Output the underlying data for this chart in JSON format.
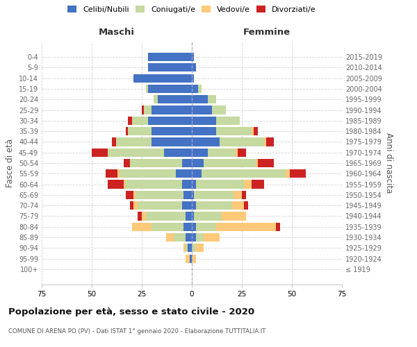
{
  "age_groups": [
    "100+",
    "95-99",
    "90-94",
    "85-89",
    "80-84",
    "75-79",
    "70-74",
    "65-69",
    "60-64",
    "55-59",
    "50-54",
    "45-49",
    "40-44",
    "35-39",
    "30-34",
    "25-29",
    "20-24",
    "15-19",
    "10-14",
    "5-9",
    "0-4"
  ],
  "birth_years": [
    "≤ 1919",
    "1920-1924",
    "1925-1929",
    "1930-1934",
    "1935-1939",
    "1940-1944",
    "1945-1949",
    "1950-1954",
    "1955-1959",
    "1960-1964",
    "1965-1969",
    "1970-1974",
    "1975-1979",
    "1980-1984",
    "1985-1989",
    "1990-1994",
    "1995-1999",
    "2000-2004",
    "2005-2009",
    "2010-2014",
    "2015-2019"
  ],
  "maschi": {
    "celibe": [
      0,
      1,
      2,
      3,
      4,
      3,
      5,
      4,
      5,
      8,
      5,
      14,
      20,
      20,
      22,
      20,
      17,
      22,
      29,
      22,
      22
    ],
    "coniugato": [
      0,
      0,
      1,
      6,
      16,
      20,
      22,
      24,
      28,
      28,
      26,
      28,
      18,
      12,
      8,
      4,
      2,
      1,
      0,
      0,
      0
    ],
    "vedovo": [
      0,
      2,
      1,
      4,
      10,
      2,
      2,
      1,
      1,
      1,
      0,
      0,
      0,
      0,
      0,
      0,
      0,
      0,
      0,
      0,
      0
    ],
    "divorziato": [
      0,
      0,
      0,
      0,
      0,
      2,
      2,
      4,
      8,
      6,
      3,
      8,
      2,
      1,
      2,
      1,
      0,
      0,
      0,
      0,
      0
    ]
  },
  "femmine": {
    "nubile": [
      0,
      0,
      0,
      2,
      2,
      1,
      2,
      1,
      2,
      5,
      6,
      8,
      14,
      12,
      12,
      10,
      8,
      3,
      1,
      2,
      1
    ],
    "coniugata": [
      0,
      0,
      2,
      4,
      10,
      14,
      18,
      20,
      24,
      42,
      26,
      14,
      22,
      18,
      12,
      7,
      4,
      2,
      0,
      0,
      0
    ],
    "vedova": [
      0,
      2,
      4,
      8,
      30,
      12,
      6,
      4,
      4,
      2,
      1,
      1,
      1,
      1,
      0,
      0,
      0,
      0,
      0,
      0,
      0
    ],
    "divorziata": [
      0,
      0,
      0,
      0,
      2,
      0,
      2,
      2,
      6,
      8,
      8,
      4,
      4,
      2,
      0,
      0,
      0,
      0,
      0,
      0,
      0
    ]
  },
  "colors": {
    "celibe": "#4472c4",
    "coniugato": "#c5d9a0",
    "vedovo": "#ffc97a",
    "divorziato": "#cc2222"
  },
  "xlim": 75,
  "title": "Popolazione per età, sesso e stato civile - 2020",
  "subtitle": "COMUNE DI ARENA PO (PV) - Dati ISTAT 1° gennaio 2020 - Elaborazione TUTTITALIA.IT",
  "ylabel_left": "Fasce di età",
  "ylabel_right": "Anni di nascita",
  "xlabel_left": "Maschi",
  "xlabel_right": "Femmine",
  "legend_labels": [
    "Celibi/Nubili",
    "Coniugati/e",
    "Vedovi/e",
    "Divorziati/e"
  ],
  "background_color": "#ffffff",
  "grid_color": "#cccccc",
  "bar_height": 0.8,
  "figsize": [
    6.0,
    5.0
  ],
  "dpi": 100
}
